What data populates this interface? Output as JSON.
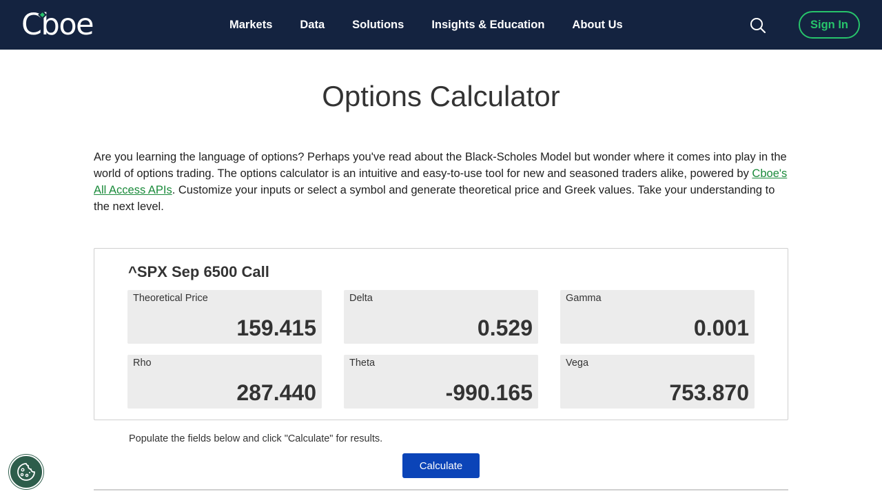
{
  "header": {
    "logo": "Cboe",
    "nav": [
      "Markets",
      "Data",
      "Solutions",
      "Insights & Education",
      "About Us"
    ],
    "signin_label": "Sign In"
  },
  "page": {
    "title": "Options Calculator",
    "intro_before": "Are you learning the language of options? Perhaps you've read about the Black-Scholes Model but wonder where it comes into play in the world of options trading. The options calculator is an intuitive and easy-to-use tool for new and seasoned traders alike, powered by ",
    "intro_link": "Cboe's All Access APIs",
    "intro_after": ". Customize your inputs or select a symbol and generate theoretical price and Greek values. Take your understanding to the next level."
  },
  "results": {
    "title": "^SPX Sep 6500 Call",
    "metrics": [
      {
        "label": "Theoretical Price",
        "value": "159.415"
      },
      {
        "label": "Delta",
        "value": "0.529"
      },
      {
        "label": "Gamma",
        "value": "0.001"
      },
      {
        "label": "Rho",
        "value": "287.440"
      },
      {
        "label": "Theta",
        "value": "-990.165"
      },
      {
        "label": "Vega",
        "value": "753.870"
      }
    ]
  },
  "form": {
    "hint": "Populate the fields below and click \"Calculate\" for results.",
    "calculate_label": "Calculate"
  },
  "colors": {
    "navbar": "#142340",
    "accent_green": "#27c46b",
    "button_blue": "#0b44b8",
    "metric_bg": "#ececec"
  },
  "icons": [
    "search-icon",
    "cookie-icon"
  ]
}
